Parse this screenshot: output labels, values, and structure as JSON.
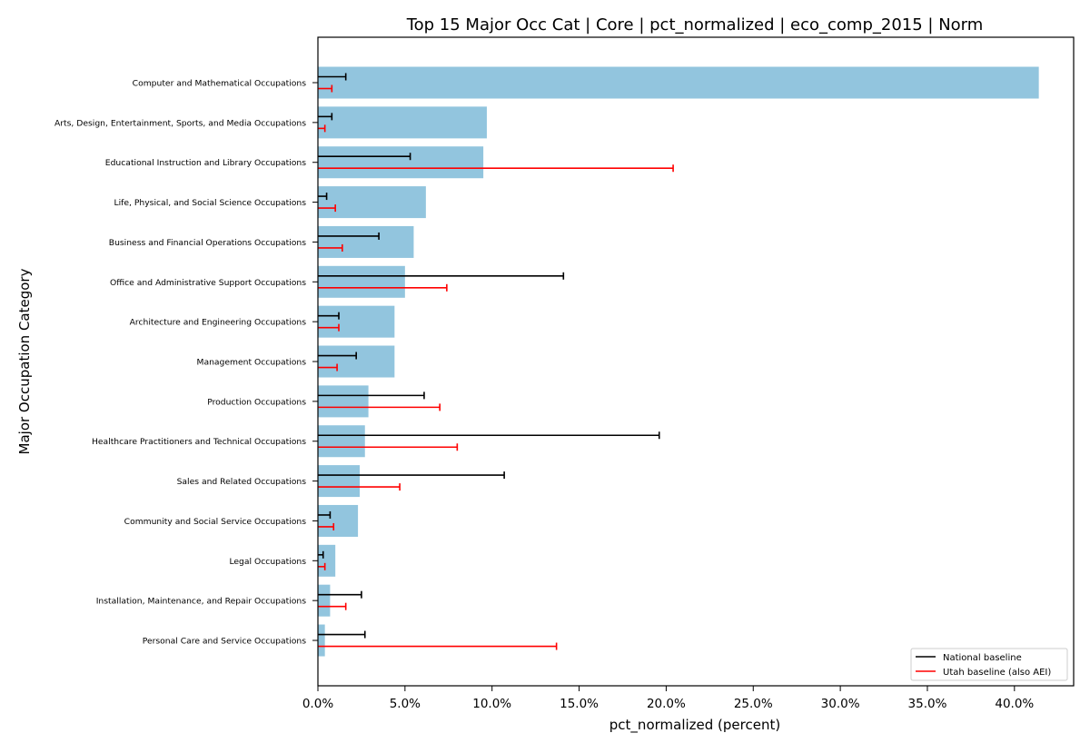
{
  "chart_data": {
    "type": "bar",
    "orientation": "horizontal",
    "title": "Top 15 Major Occ Cat | Core | pct_normalized | eco_comp_2015 | Norm",
    "xlabel": "pct_normalized (percent)",
    "ylabel": "Major Occupation Category",
    "xlim": [
      0,
      43.4
    ],
    "x_ticks": [
      "0.0%",
      "5.0%",
      "10.0%",
      "15.0%",
      "20.0%",
      "25.0%",
      "30.0%",
      "35.0%",
      "40.0%"
    ],
    "x_tick_values": [
      0,
      5,
      10,
      15,
      20,
      25,
      30,
      35,
      40
    ],
    "grid": false,
    "legend_position": "bottom-right",
    "bar_color": "#92c5de",
    "categories": [
      "Computer and Mathematical Occupations",
      "Arts, Design, Entertainment, Sports, and Media Occupations",
      "Educational Instruction and Library Occupations",
      "Life, Physical, and Social Science Occupations",
      "Business and Financial Operations Occupations",
      "Office and Administrative Support Occupations",
      "Architecture and Engineering Occupations",
      "Management Occupations",
      "Production Occupations",
      "Healthcare Practitioners and Technical Occupations",
      "Sales and Related Occupations",
      "Community and Social Service Occupations",
      "Legal Occupations",
      "Installation, Maintenance, and Repair Occupations",
      "Personal Care and Service Occupations"
    ],
    "values": [
      41.4,
      9.7,
      9.5,
      6.2,
      5.5,
      5.0,
      4.4,
      4.4,
      2.9,
      2.7,
      2.4,
      2.3,
      1.0,
      0.7,
      0.4
    ],
    "series": [
      {
        "name": "National baseline",
        "color": "#000000",
        "values": [
          1.6,
          0.8,
          5.3,
          0.5,
          3.5,
          14.1,
          1.2,
          2.2,
          6.1,
          19.6,
          10.7,
          0.7,
          0.3,
          2.5,
          2.7
        ]
      },
      {
        "name": "Utah baseline (also AEI)",
        "color": "#ff0000",
        "values": [
          0.8,
          0.4,
          20.4,
          1.0,
          1.4,
          7.4,
          1.2,
          1.1,
          7.0,
          8.0,
          4.7,
          0.9,
          0.4,
          1.6,
          13.7
        ]
      }
    ]
  }
}
